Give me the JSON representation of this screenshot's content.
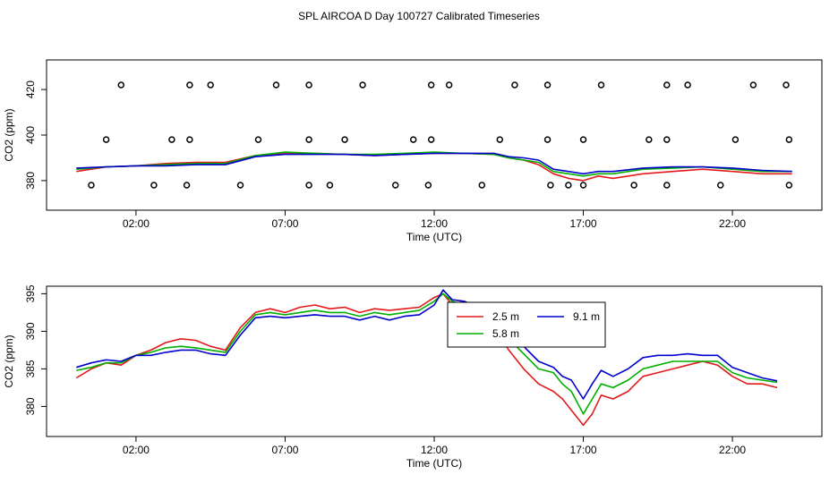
{
  "title": "SPL AIRCOA D  Day 100727  Calibrated Timeseries",
  "colors": {
    "red": "#e31a1c",
    "green": "#00b000",
    "blue": "#0000cc",
    "axis": "#000000"
  },
  "chart_data": [
    {
      "type": "line",
      "id": "top",
      "xlabel": "Time (UTC)",
      "ylabel": "CO2 (ppm)",
      "x_unit": "hours UTC",
      "xlim": [
        -1.0,
        25.0
      ],
      "ylim": [
        367,
        433
      ],
      "x_ticks": [
        2,
        7,
        12,
        17,
        22
      ],
      "x_tick_labels": [
        "02:00",
        "07:00",
        "12:00",
        "17:00",
        "22:00"
      ],
      "y_ticks": [
        380,
        400,
        420
      ],
      "y_tick_labels": [
        "380",
        "400",
        "420"
      ],
      "series": [
        {
          "color": "red",
          "x": [
            0,
            1,
            2,
            3,
            4,
            5,
            6,
            7,
            8,
            9,
            10,
            11,
            12,
            13,
            14,
            14.5,
            15,
            15.5,
            16,
            16.5,
            17,
            17.5,
            18,
            19,
            20,
            21,
            22,
            23,
            24
          ],
          "y": [
            384,
            386,
            386.5,
            387.5,
            388,
            388,
            391,
            392,
            392,
            391.5,
            391,
            391.5,
            392,
            392,
            391.5,
            390,
            389,
            387,
            383,
            381,
            380,
            382,
            381,
            383,
            384,
            385,
            384,
            383,
            383
          ]
        },
        {
          "color": "green",
          "x": [
            0,
            1,
            2,
            3,
            4,
            5,
            6,
            7,
            8,
            9,
            10,
            11,
            12,
            13,
            14,
            14.5,
            15,
            15.5,
            16,
            16.5,
            17,
            17.5,
            18,
            19,
            20,
            21,
            22,
            23,
            24
          ],
          "y": [
            385,
            386,
            386.5,
            387,
            387.5,
            387.5,
            391,
            392.5,
            392,
            391.5,
            391.5,
            392,
            392.5,
            392,
            391.5,
            390,
            389,
            388,
            384,
            383,
            382,
            383,
            383,
            385,
            385.5,
            386,
            385,
            384,
            384
          ]
        },
        {
          "color": "blue",
          "x": [
            0,
            1,
            2,
            3,
            4,
            5,
            6,
            7,
            8,
            9,
            10,
            11,
            12,
            13,
            14,
            14.5,
            15,
            15.5,
            16,
            16.5,
            17,
            17.5,
            18,
            19,
            20,
            21,
            22,
            23,
            24
          ],
          "y": [
            385.5,
            386,
            386.5,
            386.5,
            387,
            387,
            390.5,
            391.5,
            391.5,
            391.5,
            391,
            391.5,
            392,
            392,
            392,
            390.5,
            390,
            389,
            385,
            384,
            383,
            384,
            384,
            385.5,
            386,
            386,
            385.5,
            384.5,
            384
          ]
        }
      ],
      "points": {
        "x": [
          1.5,
          3.8,
          4.5,
          6.7,
          7.8,
          9.6,
          11.9,
          12.5,
          14.7,
          15.8,
          17.6,
          19.8,
          20.5,
          22.7,
          23.8,
          1.0,
          3.2,
          3.8,
          6.1,
          7.8,
          9.0,
          11.3,
          11.9,
          14.2,
          15.8,
          17.0,
          19.2,
          19.8,
          22.1,
          23.9,
          0.5,
          2.6,
          3.7,
          5.5,
          7.8,
          8.5,
          10.7,
          11.8,
          13.6,
          15.9,
          16.5,
          17.0,
          18.7,
          19.8,
          21.6,
          23.9
        ],
        "y": [
          422,
          422,
          422,
          422,
          422,
          422,
          422,
          422,
          422,
          422,
          422,
          422,
          422,
          422,
          422,
          398,
          398,
          398,
          398,
          398,
          398,
          398,
          398,
          398,
          398,
          398,
          398,
          398,
          398,
          398,
          378,
          378,
          378,
          378,
          378,
          378,
          378,
          378,
          378,
          378,
          378,
          378,
          378,
          378,
          378,
          378
        ]
      }
    },
    {
      "type": "line",
      "id": "bottom",
      "xlabel": "Time (UTC)",
      "ylabel": "CO2 (ppm)",
      "x_unit": "hours UTC",
      "xlim": [
        -1.0,
        25.0
      ],
      "ylim": [
        376,
        396
      ],
      "x_ticks": [
        2,
        7,
        12,
        17,
        22
      ],
      "x_tick_labels": [
        "02:00",
        "07:00",
        "12:00",
        "17:00",
        "22:00"
      ],
      "y_ticks": [
        380,
        385,
        390,
        395
      ],
      "y_tick_labels": [
        "380",
        "385",
        "390",
        "395"
      ],
      "legend": {
        "placement": "center-right",
        "entries": [
          {
            "label": "2.5 m",
            "color": "red"
          },
          {
            "label": "9.1 m",
            "color": "blue"
          },
          {
            "label": "5.8 m",
            "color": "green"
          }
        ]
      },
      "series": [
        {
          "color": "red",
          "x": [
            0,
            0.5,
            1,
            1.5,
            2,
            2.5,
            3,
            3.5,
            4,
            4.5,
            5,
            5.5,
            6,
            6.5,
            7,
            7.5,
            8,
            8.5,
            9,
            9.5,
            10,
            10.5,
            11,
            11.5,
            12,
            12.3,
            12.6,
            13,
            13.5,
            14,
            14.5,
            15,
            15.5,
            16,
            16.3,
            16.6,
            17,
            17.3,
            17.6,
            18,
            18.5,
            19,
            19.5,
            20,
            20.5,
            21,
            21.5,
            22,
            22.5,
            23,
            23.5
          ],
          "y": [
            383.8,
            385,
            385.8,
            385.5,
            386.8,
            387.5,
            388.5,
            389,
            388.8,
            388,
            387.5,
            390.5,
            392.5,
            393,
            392.5,
            393.2,
            393.5,
            393,
            393.2,
            392.5,
            393,
            392.8,
            393,
            393.2,
            394.5,
            395,
            393.5,
            394,
            392.5,
            390.5,
            387.5,
            385,
            383,
            382,
            381,
            379.5,
            377.5,
            379,
            381.5,
            381,
            382,
            384,
            384.5,
            385,
            385.5,
            386,
            385.5,
            384,
            383,
            383,
            382.5
          ]
        },
        {
          "color": "green",
          "x": [
            0,
            0.5,
            1,
            1.5,
            2,
            2.5,
            3,
            3.5,
            4,
            4.5,
            5,
            5.5,
            6,
            6.5,
            7,
            7.5,
            8,
            8.5,
            9,
            9.5,
            10,
            10.5,
            11,
            11.5,
            12,
            12.3,
            12.6,
            13,
            13.5,
            14,
            14.5,
            15,
            15.5,
            16,
            16.3,
            16.6,
            17,
            17.3,
            17.6,
            18,
            18.5,
            19,
            19.5,
            20,
            20.5,
            21,
            21.5,
            22,
            22.5,
            23,
            23.5
          ],
          "y": [
            384.8,
            385.2,
            385.8,
            385.8,
            386.8,
            387.2,
            387.8,
            388,
            387.8,
            387.5,
            387.2,
            390,
            392.2,
            392.5,
            392.2,
            392.5,
            392.8,
            392.5,
            392.5,
            392,
            392.5,
            392.2,
            392.5,
            392.8,
            394,
            395,
            394,
            393.5,
            393,
            391.5,
            389,
            387,
            385,
            384.5,
            383,
            382,
            379,
            381,
            383,
            382.5,
            383.5,
            385,
            385.5,
            386,
            386,
            386,
            386,
            384.5,
            383.8,
            383.5,
            383.2
          ]
        },
        {
          "color": "blue",
          "x": [
            0,
            0.5,
            1,
            1.5,
            2,
            2.5,
            3,
            3.5,
            4,
            4.5,
            5,
            5.5,
            6,
            6.5,
            7,
            7.5,
            8,
            8.5,
            9,
            9.5,
            10,
            10.5,
            11,
            11.5,
            12,
            12.3,
            12.6,
            13,
            13.5,
            14,
            14.5,
            15,
            15.5,
            16,
            16.3,
            16.6,
            17,
            17.3,
            17.6,
            18,
            18.5,
            19,
            19.5,
            20,
            20.5,
            21,
            21.5,
            22,
            22.5,
            23,
            23.5
          ],
          "y": [
            385.2,
            385.8,
            386.2,
            386,
            386.8,
            386.8,
            387.2,
            387.5,
            387.5,
            387,
            386.8,
            389.5,
            391.8,
            392,
            391.8,
            392,
            392.2,
            392,
            392,
            391.5,
            392,
            391.5,
            392,
            392.2,
            393.5,
            395.5,
            394.2,
            394,
            393.2,
            392.2,
            390,
            388,
            386,
            385.2,
            384,
            383.5,
            381,
            383,
            384.8,
            384,
            385,
            386.5,
            386.8,
            386.8,
            387,
            386.8,
            386.8,
            385.2,
            384.5,
            383.8,
            383.4
          ]
        }
      ]
    }
  ]
}
